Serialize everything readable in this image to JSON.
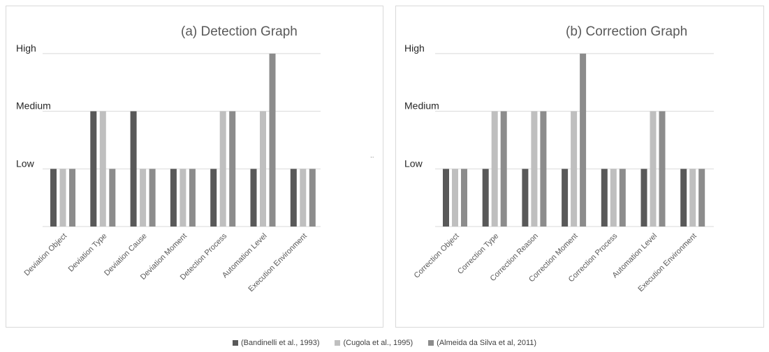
{
  "chart_data": [
    {
      "type": "bar",
      "title": "(a) Detection Graph",
      "categories": [
        "Deviation Object",
        "Deviation Type",
        "Deviation Cause",
        "Deviation Moment",
        "Detection Process",
        "Automation Level",
        "Execution Environment"
      ],
      "y_levels": [
        "Low",
        "Medium",
        "High"
      ],
      "series": [
        {
          "name": "(Bandinelli et al., 1993)",
          "values": [
            1,
            2,
            2,
            1,
            1,
            1,
            1
          ]
        },
        {
          "name": "(Cugola et al., 1995)",
          "values": [
            1,
            2,
            1,
            1,
            2,
            2,
            1
          ]
        },
        {
          "name": "(Almeida da Silva et al, 2011)",
          "values": [
            1,
            1,
            1,
            1,
            2,
            3,
            1
          ]
        }
      ],
      "ylim": [
        0,
        3
      ]
    },
    {
      "type": "bar",
      "title": "(b) Correction Graph",
      "categories": [
        "Correction Object",
        "Correction Type",
        "Correction Reason",
        "Correction Moment",
        "Correction Process",
        "Automation Level",
        "Execution Environment"
      ],
      "y_levels": [
        "Low",
        "Medium",
        "High"
      ],
      "series": [
        {
          "name": "(Bandinelli et al., 1993)",
          "values": [
            1,
            1,
            1,
            1,
            1,
            1,
            1
          ]
        },
        {
          "name": "(Cugola et al., 1995)",
          "values": [
            1,
            2,
            2,
            2,
            1,
            2,
            1
          ]
        },
        {
          "name": "(Almeida da Silva et al, 2011)",
          "values": [
            1,
            2,
            2,
            3,
            1,
            2,
            1
          ]
        }
      ],
      "ylim": [
        0,
        3
      ]
    }
  ],
  "legend": [
    {
      "label": "(Bandinelli et al., 1993)",
      "color": "#595959"
    },
    {
      "label": "(Cugola et al., 1995)",
      "color": "#bfbfbf"
    },
    {
      "label": "(Almeida da Silva et al, 2011)",
      "color": "#8c8c8c"
    }
  ],
  "stray_mark": ".."
}
